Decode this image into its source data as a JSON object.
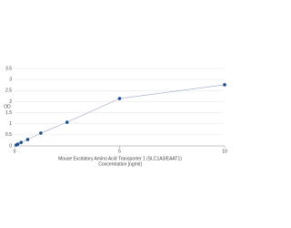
{
  "chart_data": {
    "type": "line",
    "x_label": "Mouse Excitatory Amino Acid Transporter 1 (SLC1A3/EAAT1)",
    "x_label_2": "Concentration [ng/ml]",
    "y_label": "OD",
    "series": [
      {
        "color": "#1f4e8c",
        "x": [
          0.078,
          0.156,
          0.312,
          0.625,
          1.25,
          2.5,
          5,
          10
        ],
        "values": [
          0.04,
          0.08,
          0.16,
          0.29,
          0.58,
          1.07,
          2.14,
          2.76
        ]
      }
    ],
    "xlim": [
      0,
      10
    ],
    "xticks": [
      0,
      5,
      10
    ],
    "ylim": [
      0,
      3.5
    ],
    "yticks": [
      0,
      0.5,
      1,
      1.5,
      2,
      2.5,
      3,
      3.5
    ],
    "grid": true
  }
}
